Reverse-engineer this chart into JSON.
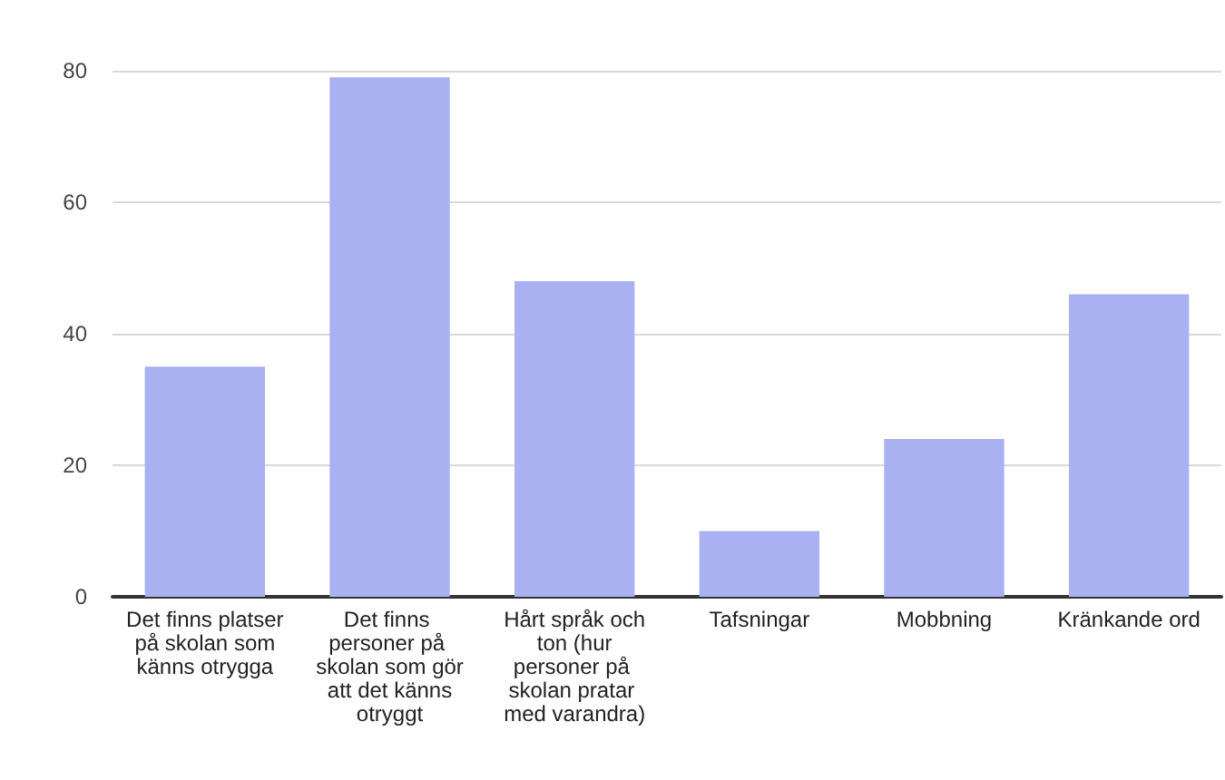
{
  "chart_data": {
    "type": "bar",
    "categories": [
      "Det finns platser på skolan som känns otrygga",
      "Det finns personer på skolan som gör att det känns otryggt",
      "Hårt språk och ton (hur personer på skolan pratar med varandra)",
      "Tafsningar",
      "Mobbning",
      "Kränkande ord"
    ],
    "values": [
      35,
      79,
      48,
      10,
      24,
      46
    ],
    "color": "#aab1f2",
    "ylim": [
      0,
      80
    ],
    "yticks": [
      0,
      20,
      40,
      60,
      80
    ],
    "grid": "y"
  }
}
